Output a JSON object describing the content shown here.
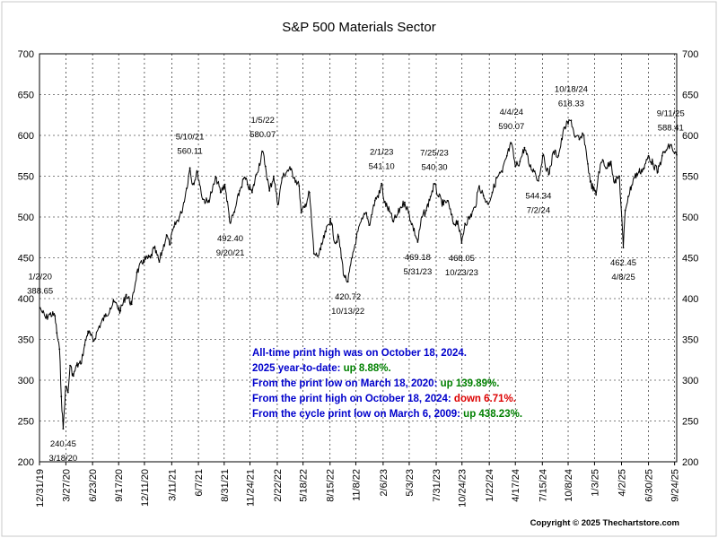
{
  "chart_data": {
    "type": "line",
    "title": "S&P 500 Materials Sector",
    "xlabel": "",
    "ylabel": "",
    "ylim": [
      200,
      700
    ],
    "yticks": [
      200,
      250,
      300,
      350,
      400,
      450,
      500,
      550,
      600,
      650,
      700
    ],
    "xlim": [
      "2019-12-31",
      "2025-10-01"
    ],
    "x_ticks": [
      {
        "date": "2019-12-31",
        "label": "12/31/19"
      },
      {
        "date": "2020-03-27",
        "label": "3/27/20"
      },
      {
        "date": "2020-06-23",
        "label": "6/23/20"
      },
      {
        "date": "2020-09-17",
        "label": "9/17/20"
      },
      {
        "date": "2020-12-11",
        "label": "12/11/20"
      },
      {
        "date": "2021-03-11",
        "label": "3/11/21"
      },
      {
        "date": "2021-06-07",
        "label": "6/7/21"
      },
      {
        "date": "2021-08-31",
        "label": "8/31/21"
      },
      {
        "date": "2021-11-24",
        "label": "11/24/21"
      },
      {
        "date": "2022-02-22",
        "label": "2/22/22"
      },
      {
        "date": "2022-05-18",
        "label": "5/18/22"
      },
      {
        "date": "2022-08-15",
        "label": "8/15/22"
      },
      {
        "date": "2022-11-08",
        "label": "11/8/22"
      },
      {
        "date": "2023-02-06",
        "label": "2/6/23"
      },
      {
        "date": "2023-05-03",
        "label": "5/3/23"
      },
      {
        "date": "2023-07-31",
        "label": "7/31/23"
      },
      {
        "date": "2023-10-24",
        "label": "10/24/23"
      },
      {
        "date": "2024-01-22",
        "label": "1/22/24"
      },
      {
        "date": "2024-04-17",
        "label": "4/17/24"
      },
      {
        "date": "2024-07-15",
        "label": "7/15/24"
      },
      {
        "date": "2024-10-08",
        "label": "10/8/24"
      },
      {
        "date": "2025-01-03",
        "label": "1/3/25"
      },
      {
        "date": "2025-04-02",
        "label": "4/2/25"
      },
      {
        "date": "2025-06-30",
        "label": "6/30/25"
      },
      {
        "date": "2025-09-24",
        "label": "9/24/25"
      }
    ],
    "series": [
      {
        "color": "#000000",
        "points": [
          {
            "x": "2020-01-02",
            "y": 388.65
          },
          {
            "x": "2020-01-10",
            "y": 383
          },
          {
            "x": "2020-01-21",
            "y": 376
          },
          {
            "x": "2020-02-03",
            "y": 381
          },
          {
            "x": "2020-02-20",
            "y": 379
          },
          {
            "x": "2020-02-26",
            "y": 358
          },
          {
            "x": "2020-03-06",
            "y": 338
          },
          {
            "x": "2020-03-12",
            "y": 280
          },
          {
            "x": "2020-03-18",
            "y": 240.45
          },
          {
            "x": "2020-03-26",
            "y": 292
          },
          {
            "x": "2020-04-03",
            "y": 285
          },
          {
            "x": "2020-04-10",
            "y": 318
          },
          {
            "x": "2020-04-21",
            "y": 305
          },
          {
            "x": "2020-05-01",
            "y": 318
          },
          {
            "x": "2020-05-15",
            "y": 320
          },
          {
            "x": "2020-05-28",
            "y": 343
          },
          {
            "x": "2020-06-08",
            "y": 360
          },
          {
            "x": "2020-06-26",
            "y": 348
          },
          {
            "x": "2020-07-15",
            "y": 366
          },
          {
            "x": "2020-08-03",
            "y": 378
          },
          {
            "x": "2020-08-20",
            "y": 388
          },
          {
            "x": "2020-09-02",
            "y": 396
          },
          {
            "x": "2020-09-23",
            "y": 385
          },
          {
            "x": "2020-10-12",
            "y": 405
          },
          {
            "x": "2020-10-30",
            "y": 393
          },
          {
            "x": "2020-11-16",
            "y": 432
          },
          {
            "x": "2020-12-08",
            "y": 447
          },
          {
            "x": "2020-12-31",
            "y": 450
          },
          {
            "x": "2021-01-12",
            "y": 462
          },
          {
            "x": "2021-01-29",
            "y": 445
          },
          {
            "x": "2021-02-22",
            "y": 478
          },
          {
            "x": "2021-03-04",
            "y": 466
          },
          {
            "x": "2021-03-19",
            "y": 488
          },
          {
            "x": "2021-04-12",
            "y": 505
          },
          {
            "x": "2021-04-29",
            "y": 535
          },
          {
            "x": "2021-05-10",
            "y": 560.11
          },
          {
            "x": "2021-05-19",
            "y": 540
          },
          {
            "x": "2021-06-04",
            "y": 555
          },
          {
            "x": "2021-06-21",
            "y": 522
          },
          {
            "x": "2021-07-08",
            "y": 518
          },
          {
            "x": "2021-07-20",
            "y": 530
          },
          {
            "x": "2021-08-05",
            "y": 548
          },
          {
            "x": "2021-08-19",
            "y": 530
          },
          {
            "x": "2021-09-02",
            "y": 540
          },
          {
            "x": "2021-09-20",
            "y": 492.4
          },
          {
            "x": "2021-10-04",
            "y": 506
          },
          {
            "x": "2021-10-21",
            "y": 532
          },
          {
            "x": "2021-11-05",
            "y": 548
          },
          {
            "x": "2021-11-16",
            "y": 540
          },
          {
            "x": "2021-12-01",
            "y": 530
          },
          {
            "x": "2021-12-15",
            "y": 552
          },
          {
            "x": "2022-01-05",
            "y": 580.07
          },
          {
            "x": "2022-01-14",
            "y": 562
          },
          {
            "x": "2022-01-27",
            "y": 532
          },
          {
            "x": "2022-02-10",
            "y": 550
          },
          {
            "x": "2022-02-24",
            "y": 515
          },
          {
            "x": "2022-03-10",
            "y": 548
          },
          {
            "x": "2022-03-28",
            "y": 557
          },
          {
            "x": "2022-04-07",
            "y": 558
          },
          {
            "x": "2022-04-20",
            "y": 548
          },
          {
            "x": "2022-05-05",
            "y": 538
          },
          {
            "x": "2022-05-12",
            "y": 505
          },
          {
            "x": "2022-05-23",
            "y": 512
          },
          {
            "x": "2022-06-08",
            "y": 530
          },
          {
            "x": "2022-06-23",
            "y": 455
          },
          {
            "x": "2022-07-06",
            "y": 452
          },
          {
            "x": "2022-07-15",
            "y": 460
          },
          {
            "x": "2022-08-01",
            "y": 482
          },
          {
            "x": "2022-08-16",
            "y": 498
          },
          {
            "x": "2022-09-01",
            "y": 468
          },
          {
            "x": "2022-09-12",
            "y": 476
          },
          {
            "x": "2022-09-30",
            "y": 428
          },
          {
            "x": "2022-10-13",
            "y": 420.72
          },
          {
            "x": "2022-10-27",
            "y": 450
          },
          {
            "x": "2022-11-10",
            "y": 475
          },
          {
            "x": "2022-11-30",
            "y": 498
          },
          {
            "x": "2022-12-13",
            "y": 505
          },
          {
            "x": "2022-12-22",
            "y": 490
          },
          {
            "x": "2023-01-10",
            "y": 520
          },
          {
            "x": "2023-01-26",
            "y": 530
          },
          {
            "x": "2023-02-01",
            "y": 541.1
          },
          {
            "x": "2023-02-10",
            "y": 518
          },
          {
            "x": "2023-02-27",
            "y": 507
          },
          {
            "x": "2023-03-10",
            "y": 495
          },
          {
            "x": "2023-03-22",
            "y": 500
          },
          {
            "x": "2023-04-05",
            "y": 512
          },
          {
            "x": "2023-04-18",
            "y": 518
          },
          {
            "x": "2023-05-01",
            "y": 505
          },
          {
            "x": "2023-05-31",
            "y": 469.18
          },
          {
            "x": "2023-06-14",
            "y": 500
          },
          {
            "x": "2023-06-28",
            "y": 508
          },
          {
            "x": "2023-07-12",
            "y": 525
          },
          {
            "x": "2023-07-25",
            "y": 540.3
          },
          {
            "x": "2023-08-08",
            "y": 525
          },
          {
            "x": "2023-08-24",
            "y": 515
          },
          {
            "x": "2023-09-06",
            "y": 520
          },
          {
            "x": "2023-09-26",
            "y": 492
          },
          {
            "x": "2023-10-10",
            "y": 495
          },
          {
            "x": "2023-10-23",
            "y": 468.05
          },
          {
            "x": "2023-11-03",
            "y": 492
          },
          {
            "x": "2023-11-20",
            "y": 500
          },
          {
            "x": "2023-12-06",
            "y": 512
          },
          {
            "x": "2023-12-20",
            "y": 538
          },
          {
            "x": "2024-01-03",
            "y": 526
          },
          {
            "x": "2024-01-17",
            "y": 516
          },
          {
            "x": "2024-02-01",
            "y": 530
          },
          {
            "x": "2024-02-16",
            "y": 548
          },
          {
            "x": "2024-03-05",
            "y": 555
          },
          {
            "x": "2024-03-20",
            "y": 575
          },
          {
            "x": "2024-04-04",
            "y": 590.07
          },
          {
            "x": "2024-04-17",
            "y": 562
          },
          {
            "x": "2024-05-02",
            "y": 568
          },
          {
            "x": "2024-05-17",
            "y": 585
          },
          {
            "x": "2024-06-04",
            "y": 562
          },
          {
            "x": "2024-06-20",
            "y": 556
          },
          {
            "x": "2024-07-02",
            "y": 544.34
          },
          {
            "x": "2024-07-16",
            "y": 575
          },
          {
            "x": "2024-08-05",
            "y": 552
          },
          {
            "x": "2024-08-21",
            "y": 580
          },
          {
            "x": "2024-09-06",
            "y": 575
          },
          {
            "x": "2024-09-26",
            "y": 610
          },
          {
            "x": "2024-10-18",
            "y": 618.33
          },
          {
            "x": "2024-10-31",
            "y": 598
          },
          {
            "x": "2024-11-14",
            "y": 595
          },
          {
            "x": "2024-11-29",
            "y": 600
          },
          {
            "x": "2024-12-12",
            "y": 565
          },
          {
            "x": "2024-12-20",
            "y": 543
          },
          {
            "x": "2025-01-08",
            "y": 527
          },
          {
            "x": "2025-01-17",
            "y": 555
          },
          {
            "x": "2025-01-30",
            "y": 570
          },
          {
            "x": "2025-02-12",
            "y": 560
          },
          {
            "x": "2025-02-26",
            "y": 568
          },
          {
            "x": "2025-03-10",
            "y": 542
          },
          {
            "x": "2025-03-26",
            "y": 550
          },
          {
            "x": "2025-04-08",
            "y": 462.45
          },
          {
            "x": "2025-04-14",
            "y": 508
          },
          {
            "x": "2025-04-24",
            "y": 525
          },
          {
            "x": "2025-05-13",
            "y": 548
          },
          {
            "x": "2025-05-29",
            "y": 555
          },
          {
            "x": "2025-06-16",
            "y": 560
          },
          {
            "x": "2025-06-30",
            "y": 575
          },
          {
            "x": "2025-07-15",
            "y": 565
          },
          {
            "x": "2025-07-31",
            "y": 555
          },
          {
            "x": "2025-08-14",
            "y": 575
          },
          {
            "x": "2025-08-28",
            "y": 582
          },
          {
            "x": "2025-09-11",
            "y": 588.41
          },
          {
            "x": "2025-09-24",
            "y": 578
          },
          {
            "x": "2025-10-01",
            "y": 576
          }
        ]
      }
    ],
    "annotations": [
      {
        "date_label": "1/2/20",
        "value_label": "388.65"
      },
      {
        "date_label": "3/18/20",
        "value_label": "240.45"
      },
      {
        "date_label": "5/10/21",
        "value_label": "560.11"
      },
      {
        "date_label": "9/20/21",
        "value_label": "492.40"
      },
      {
        "date_label": "1/5/22",
        "value_label": "580.07"
      },
      {
        "date_label": "10/13/22",
        "value_label": "420.72"
      },
      {
        "date_label": "2/1/23",
        "value_label": "541.10"
      },
      {
        "date_label": "5/31/23",
        "value_label": "469.18"
      },
      {
        "date_label": "7/25/23",
        "value_label": "540.30"
      },
      {
        "date_label": "10/23/23",
        "value_label": "468.05"
      },
      {
        "date_label": "4/4/24",
        "value_label": "590.07"
      },
      {
        "date_label": "7/2/24",
        "value_label": "544.34"
      },
      {
        "date_label": "10/18/24",
        "value_label": "618.33"
      },
      {
        "date_label": "4/8/25",
        "value_label": "462.45"
      },
      {
        "date_label": "9/11/25",
        "value_label": "588.41"
      }
    ],
    "info_lines": [
      [
        {
          "text": "All-time print high was on October 18, 2024.",
          "color": "#0000cc"
        }
      ],
      [
        {
          "text": "2025 year-to-date:  ",
          "color": "#0000cc"
        },
        {
          "text": "up 8.88%.",
          "color": "#008000"
        }
      ],
      [
        {
          "text": "From the print low on March 18, 2020:  ",
          "color": "#0000cc"
        },
        {
          "text": "up 139.89%.",
          "color": "#008000"
        }
      ],
      [
        {
          "text": "From the print high on October 18, 2024:  ",
          "color": "#0000cc"
        },
        {
          "text": "down 6.71%.",
          "color": "#dd0000"
        }
      ],
      [
        {
          "text": "From the cycle print low on March 6, 2009:  ",
          "color": "#0000cc"
        },
        {
          "text": "up 438.23%.",
          "color": "#008000"
        }
      ]
    ],
    "copyright": "Copyright © 2025 Thechartstore.com",
    "grid": true,
    "legend": "none"
  }
}
